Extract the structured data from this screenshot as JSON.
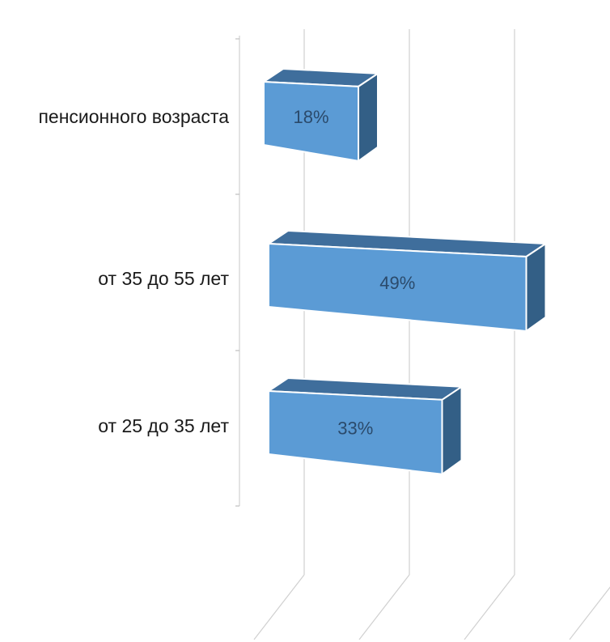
{
  "chart_data": {
    "type": "bar",
    "orientation": "horizontal",
    "three_d": true,
    "categories": [
      "пенсионного возраста",
      "от 35 до 55 лет",
      "от 25 до 35 лет"
    ],
    "values": [
      18,
      49,
      33
    ],
    "value_labels": [
      "18%",
      "49%",
      "33%"
    ],
    "unit": "%",
    "xlim": [
      0,
      60
    ],
    "grid": true,
    "legend": "none",
    "colors": {
      "front": "#5b9bd5",
      "top": "#3f6e9c",
      "side": "#335f86",
      "edge": "#ffffff",
      "grid": "#d0d0d0"
    }
  }
}
